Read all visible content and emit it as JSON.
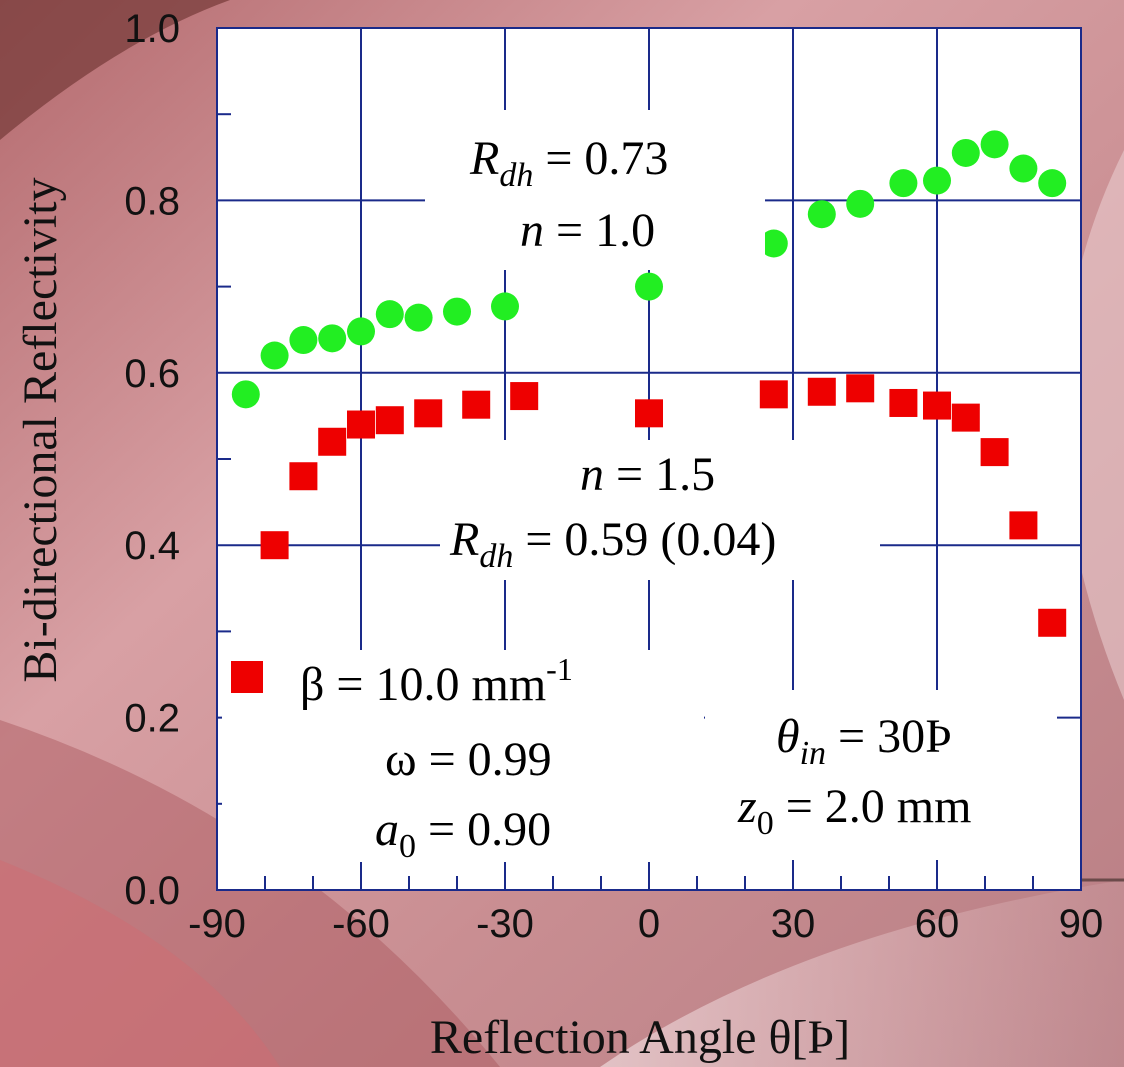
{
  "chart_data": {
    "type": "scatter",
    "xlabel": "Reflection Angle θ[Þ]",
    "ylabel": "Bi-directional Reflectivity",
    "xlim": [
      -90,
      90
    ],
    "ylim": [
      0.0,
      1.0
    ],
    "x_ticks": [
      "-90",
      "-60",
      "-30",
      "0",
      "30",
      "60",
      "90"
    ],
    "y_ticks": [
      "0.0",
      "0.2",
      "0.4",
      "0.6",
      "0.8",
      "1.0"
    ],
    "grid": true,
    "series": [
      {
        "marker": "circle",
        "color": "#22ee22",
        "x": [
          -84,
          -78,
          -72,
          -66,
          -60,
          -54,
          -48,
          -40,
          -30,
          0,
          26,
          36,
          44,
          53,
          60,
          66,
          72,
          78,
          84
        ],
        "y": [
          0.575,
          0.62,
          0.638,
          0.64,
          0.648,
          0.668,
          0.664,
          0.671,
          0.677,
          0.7,
          0.75,
          0.784,
          0.796,
          0.82,
          0.823,
          0.855,
          0.865,
          0.837,
          0.82
        ]
      },
      {
        "marker": "square",
        "color": "#ee0000",
        "x": [
          -78,
          -72,
          -66,
          -60,
          -54,
          -46,
          -36,
          -26,
          0,
          26,
          36,
          44,
          53,
          60,
          66,
          72,
          78,
          84
        ],
        "y": [
          0.4,
          0.48,
          0.52,
          0.54,
          0.545,
          0.553,
          0.563,
          0.573,
          0.553,
          0.575,
          0.578,
          0.582,
          0.565,
          0.562,
          0.548,
          0.508,
          0.423,
          0.31
        ]
      }
    ],
    "annotations": {
      "green_rdh": "R_dh = 0.73",
      "green_n": "n = 1.0",
      "red_n": "n = 1.5",
      "red_rdh": "R_dh = 0.59 (0.04)",
      "theta_in": "θ_in = 30Þ",
      "z0": "z_0 = 2.0 mm"
    },
    "legend": {
      "placement": "bottom-left",
      "beta": "β = 10.0 mm-1",
      "omega": "ω = 0.99",
      "a0": "a_0 = 0.90"
    }
  }
}
